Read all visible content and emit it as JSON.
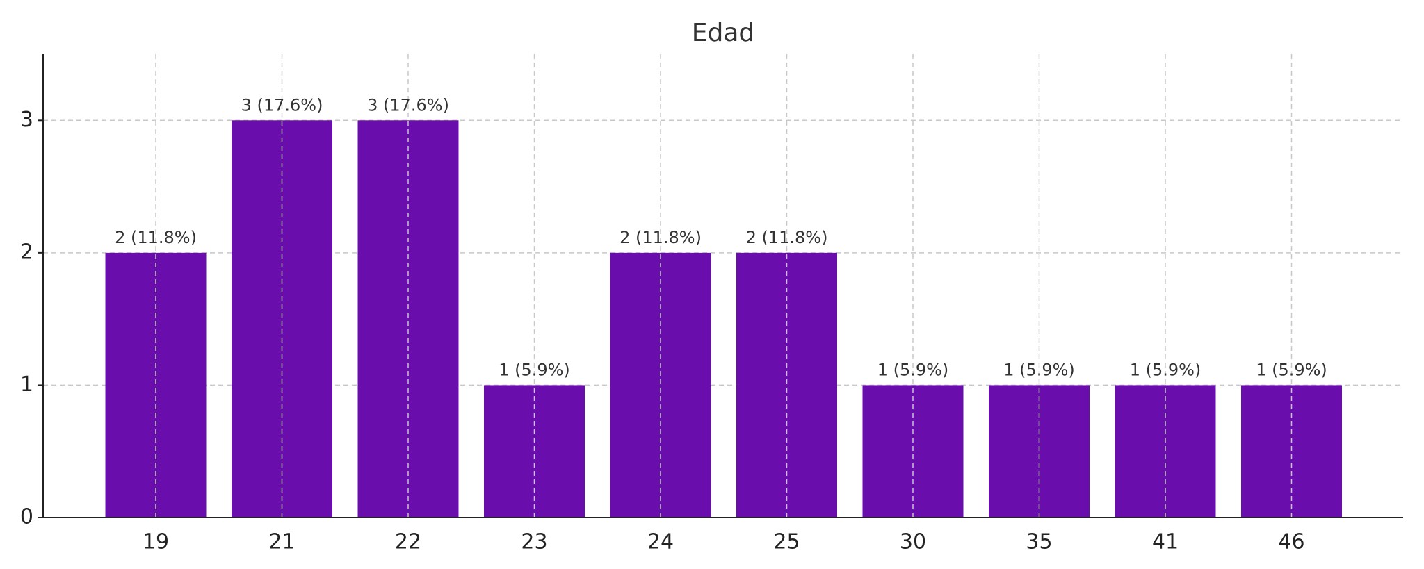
{
  "chart_data": {
    "type": "bar",
    "title": "Edad",
    "xlabel": "",
    "ylabel": "",
    "categories": [
      "19",
      "21",
      "22",
      "23",
      "24",
      "25",
      "30",
      "35",
      "41",
      "46"
    ],
    "values": [
      2,
      3,
      3,
      1,
      2,
      2,
      1,
      1,
      1,
      1
    ],
    "data_labels": [
      "2 (11.8%)",
      "3 (17.6%)",
      "3 (17.6%)",
      "1 (5.9%)",
      "2 (11.8%)",
      "2 (11.8%)",
      "1 (5.9%)",
      "1 (5.9%)",
      "1 (5.9%)",
      "1 (5.9%)"
    ],
    "yticks": [
      0,
      1,
      2,
      3
    ],
    "ylim": [
      0,
      3.5
    ],
    "grid": true,
    "bar_color": "#6a0dad"
  }
}
